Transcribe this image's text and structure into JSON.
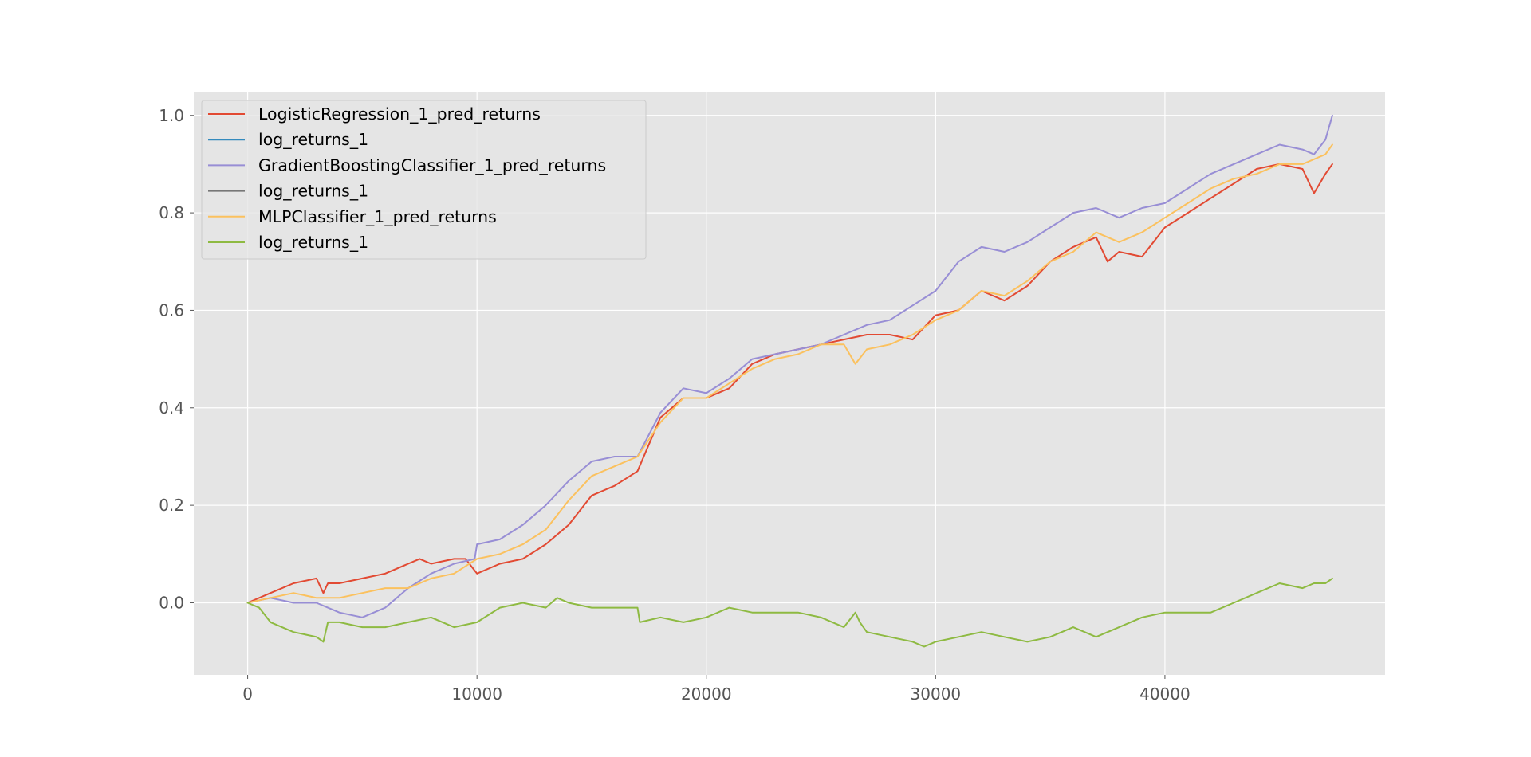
{
  "chart_data": {
    "type": "line",
    "style": "ggplot",
    "grid": true,
    "legend_placement": "top-left",
    "xlim": [
      -2350,
      49600
    ],
    "ylim": [
      -0.148,
      1.047
    ],
    "x_ticks": [
      0,
      10000,
      20000,
      30000,
      40000
    ],
    "x_tick_labels": [
      "0",
      "10000",
      "20000",
      "30000",
      "40000"
    ],
    "y_ticks": [
      0.0,
      0.2,
      0.4,
      0.6,
      0.8,
      1.0
    ],
    "y_tick_labels": [
      "0.0",
      "0.2",
      "0.4",
      "0.6",
      "0.8",
      "1.0"
    ],
    "series": [
      {
        "name": "LogisticRegression_1_pred_returns",
        "color": "#E24A33",
        "x": [
          0,
          1000,
          2000,
          3000,
          3300,
          3500,
          4000,
          5000,
          6000,
          7000,
          7500,
          8000,
          9000,
          9500,
          10000,
          11000,
          12000,
          13000,
          14000,
          15000,
          16000,
          17000,
          18000,
          19000,
          20000,
          21000,
          22000,
          23000,
          24000,
          25000,
          26000,
          27000,
          28000,
          29000,
          30000,
          31000,
          32000,
          33000,
          34000,
          35000,
          36000,
          37000,
          37500,
          38000,
          39000,
          40000,
          41000,
          42000,
          43000,
          44000,
          45000,
          46000,
          46500,
          47000,
          47300
        ],
        "y": [
          0.0,
          0.02,
          0.04,
          0.05,
          0.02,
          0.04,
          0.04,
          0.05,
          0.06,
          0.08,
          0.09,
          0.08,
          0.09,
          0.09,
          0.06,
          0.08,
          0.09,
          0.12,
          0.16,
          0.22,
          0.24,
          0.27,
          0.38,
          0.42,
          0.42,
          0.44,
          0.49,
          0.51,
          0.52,
          0.53,
          0.54,
          0.55,
          0.55,
          0.54,
          0.59,
          0.6,
          0.64,
          0.62,
          0.65,
          0.7,
          0.73,
          0.75,
          0.7,
          0.72,
          0.71,
          0.77,
          0.8,
          0.83,
          0.86,
          0.89,
          0.9,
          0.89,
          0.84,
          0.88,
          0.9
        ]
      },
      {
        "name": "log_returns_1",
        "color": "#348ABD",
        "x": [],
        "y": []
      },
      {
        "name": "GradientBoostingClassifier_1_pred_returns",
        "color": "#988ED5",
        "x": [
          0,
          1000,
          2000,
          3000,
          4000,
          5000,
          6000,
          7000,
          8000,
          9000,
          9900,
          10000,
          11000,
          12000,
          13000,
          14000,
          15000,
          16000,
          17000,
          18000,
          19000,
          20000,
          21000,
          22000,
          23000,
          24000,
          25000,
          26000,
          27000,
          28000,
          29000,
          30000,
          31000,
          32000,
          33000,
          34000,
          35000,
          36000,
          37000,
          38000,
          39000,
          40000,
          41000,
          42000,
          43000,
          44000,
          45000,
          46000,
          46500,
          47000,
          47300
        ],
        "y": [
          0.0,
          0.01,
          0.0,
          0.0,
          -0.02,
          -0.03,
          -0.01,
          0.03,
          0.06,
          0.08,
          0.09,
          0.12,
          0.13,
          0.16,
          0.2,
          0.25,
          0.29,
          0.3,
          0.3,
          0.39,
          0.44,
          0.43,
          0.46,
          0.5,
          0.51,
          0.52,
          0.53,
          0.55,
          0.57,
          0.58,
          0.61,
          0.64,
          0.7,
          0.73,
          0.72,
          0.74,
          0.77,
          0.8,
          0.81,
          0.79,
          0.81,
          0.82,
          0.85,
          0.88,
          0.9,
          0.92,
          0.94,
          0.93,
          0.92,
          0.95,
          1.0
        ]
      },
      {
        "name": "log_returns_1",
        "color": "#777777",
        "x": [],
        "y": []
      },
      {
        "name": "MLPClassifier_1_pred_returns",
        "color": "#FBC15E",
        "x": [
          0,
          1000,
          2000,
          3000,
          4000,
          5000,
          6000,
          7000,
          8000,
          9000,
          10000,
          11000,
          12000,
          13000,
          14000,
          15000,
          16000,
          17000,
          18000,
          19000,
          20000,
          21000,
          22000,
          23000,
          24000,
          25000,
          26000,
          26500,
          27000,
          28000,
          29000,
          30000,
          31000,
          32000,
          33000,
          34000,
          35000,
          36000,
          37000,
          38000,
          39000,
          40000,
          41000,
          42000,
          43000,
          44000,
          45000,
          46000,
          47000,
          47300
        ],
        "y": [
          0.0,
          0.01,
          0.02,
          0.01,
          0.01,
          0.02,
          0.03,
          0.03,
          0.05,
          0.06,
          0.09,
          0.1,
          0.12,
          0.15,
          0.21,
          0.26,
          0.28,
          0.3,
          0.37,
          0.42,
          0.42,
          0.45,
          0.48,
          0.5,
          0.51,
          0.53,
          0.53,
          0.49,
          0.52,
          0.53,
          0.55,
          0.58,
          0.6,
          0.64,
          0.63,
          0.66,
          0.7,
          0.72,
          0.76,
          0.74,
          0.76,
          0.79,
          0.82,
          0.85,
          0.87,
          0.88,
          0.9,
          0.9,
          0.92,
          0.94
        ]
      },
      {
        "name": "log_returns_1",
        "color": "#8EBA42",
        "x": [
          0,
          500,
          1000,
          2000,
          3000,
          3300,
          3500,
          4000,
          5000,
          6000,
          7000,
          8000,
          9000,
          10000,
          11000,
          12000,
          13000,
          13500,
          14000,
          15000,
          16000,
          17000,
          17100,
          18000,
          19000,
          20000,
          21000,
          22000,
          23000,
          24000,
          25000,
          26000,
          26500,
          26700,
          27000,
          28000,
          29000,
          29500,
          30000,
          31000,
          32000,
          33000,
          34000,
          35000,
          36000,
          37000,
          38000,
          39000,
          40000,
          41000,
          42000,
          43000,
          44000,
          45000,
          46000,
          46500,
          47000,
          47300
        ],
        "y": [
          0.0,
          -0.01,
          -0.04,
          -0.06,
          -0.07,
          -0.08,
          -0.04,
          -0.04,
          -0.05,
          -0.05,
          -0.04,
          -0.03,
          -0.05,
          -0.04,
          -0.01,
          0.0,
          -0.01,
          0.01,
          0.0,
          -0.01,
          -0.01,
          -0.01,
          -0.04,
          -0.03,
          -0.04,
          -0.03,
          -0.01,
          -0.02,
          -0.02,
          -0.02,
          -0.03,
          -0.05,
          -0.02,
          -0.04,
          -0.06,
          -0.07,
          -0.08,
          -0.09,
          -0.08,
          -0.07,
          -0.06,
          -0.07,
          -0.08,
          -0.07,
          -0.05,
          -0.07,
          -0.05,
          -0.03,
          -0.02,
          -0.02,
          -0.02,
          0.0,
          0.02,
          0.04,
          0.03,
          0.04,
          0.04,
          0.05
        ]
      }
    ]
  }
}
